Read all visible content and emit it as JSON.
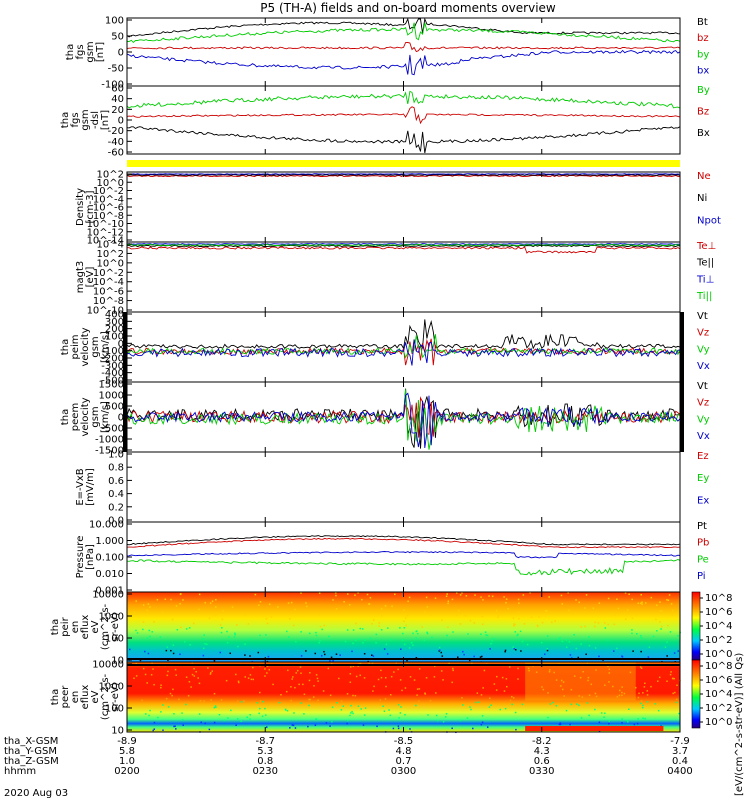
{
  "title": "P5 (TH-A) fields and on-board moments overview",
  "date_label": "2020 Aug 03",
  "time_axis": {
    "rows": [
      {
        "label": "tha_X-GSM",
        "values": [
          "-8.9",
          "-8.7",
          "-8.5",
          "-8.2",
          "-7.9"
        ]
      },
      {
        "label": "tha_Y-GSM",
        "values": [
          "5.8",
          "5.3",
          "4.8",
          "4.3",
          "3.7"
        ]
      },
      {
        "label": "tha_Z-GSM",
        "values": [
          "1.0",
          "0.8",
          "0.7",
          "0.6",
          "0.4"
        ]
      },
      {
        "label": "hhmm",
        "values": [
          "0200",
          "0230",
          "0300",
          "0330",
          "0400"
        ]
      }
    ]
  },
  "colorbar_label": "[eV/(cm^2-s-str-eV)] (All Qs)",
  "colorbar_ticks": [
    "10^8",
    "10^6",
    "10^4",
    "10^2",
    "10^0",
    "10^8",
    "10^6",
    "10^4",
    "10^2",
    "10^0"
  ],
  "chart_data": [
    {
      "id": "fgs_gsm",
      "type": "line",
      "ylabel": [
        "tha",
        "fgs",
        "gsm",
        "[nT]"
      ],
      "yticks": [
        "100",
        "50",
        "0",
        "-50",
        "-100"
      ],
      "ylim": [
        -100,
        100
      ],
      "series": [
        {
          "name": "Bt",
          "color": "#000000"
        },
        {
          "name": "bz",
          "color": "#cc0000"
        },
        {
          "name": "by",
          "color": "#00cc00"
        },
        {
          "name": "bx",
          "color": "#0000cc"
        }
      ]
    },
    {
      "id": "fgs_dsl",
      "type": "line",
      "ylabel": [
        "tha",
        "fgs",
        "gsm",
        "-dsl",
        "[nT]"
      ],
      "yticks": [
        "60",
        "40",
        "20",
        "0",
        "-20",
        "-40",
        "-60"
      ],
      "ylim": [
        -60,
        60
      ],
      "series": [
        {
          "name": "By",
          "color": "#00cc00"
        },
        {
          "name": "Bz",
          "color": "#cc0000"
        },
        {
          "name": "Bx",
          "color": "#000000"
        }
      ]
    },
    {
      "id": "density",
      "type": "line",
      "ylabel": [
        "Density",
        "[cm-3]"
      ],
      "yticks": [
        "10^2",
        "10^0",
        "10^-2",
        "10^-4",
        "10^-6",
        "10^-8",
        "10^-10",
        "10^-12",
        "10^-14"
      ],
      "scale": "log",
      "series": [
        {
          "name": "Ne",
          "color": "#cc0000"
        },
        {
          "name": "Ni",
          "color": "#000000"
        },
        {
          "name": "Npot",
          "color": "#0000cc"
        }
      ]
    },
    {
      "id": "temperature",
      "type": "line",
      "ylabel": [
        "magt3",
        "[eV]"
      ],
      "yticks": [
        "10^4",
        "10^2",
        "10^0",
        "10^-2",
        "10^-4",
        "10^-6",
        "10^-8",
        "10^-10"
      ],
      "scale": "log",
      "series": [
        {
          "name": "Te⊥",
          "color": "#cc0000"
        },
        {
          "name": "Te||",
          "color": "#000000"
        },
        {
          "name": "Ti⊥",
          "color": "#0000cc"
        },
        {
          "name": "Ti||",
          "color": "#00cc00"
        }
      ]
    },
    {
      "id": "peim_velocity",
      "type": "line",
      "ylabel": [
        "tha",
        "peim",
        "velocity",
        "gsm",
        "[km/s]"
      ],
      "yticks": [
        "400",
        "300",
        "200",
        "100",
        "0",
        "-100",
        "-200",
        "-300",
        "-400",
        "-500"
      ],
      "ylim": [
        -500,
        400
      ],
      "series": [
        {
          "name": "Vt",
          "color": "#000000"
        },
        {
          "name": "Vz",
          "color": "#cc0000"
        },
        {
          "name": "Vy",
          "color": "#00cc00"
        },
        {
          "name": "Vx",
          "color": "#0000cc"
        }
      ]
    },
    {
      "id": "peem_velocity",
      "type": "line",
      "ylabel": [
        "tha",
        "peem",
        "velocity",
        "gsm",
        "[km/s]"
      ],
      "yticks": [
        "1500",
        "1000",
        "500",
        "0",
        "-500",
        "-1000",
        "-1500"
      ],
      "ylim": [
        -1500,
        1500
      ],
      "series": [
        {
          "name": "Vt",
          "color": "#000000"
        },
        {
          "name": "Vz",
          "color": "#cc0000"
        },
        {
          "name": "Vy",
          "color": "#00cc00"
        },
        {
          "name": "Vx",
          "color": "#0000cc"
        }
      ]
    },
    {
      "id": "efield",
      "type": "line",
      "ylabel": [
        "E=-VxB",
        "[mV/m]"
      ],
      "yticks": [
        "1.0",
        "0.8",
        "0.6",
        "0.4",
        "0.2",
        "0.0"
      ],
      "ylim": [
        0,
        1
      ],
      "series": [
        {
          "name": "Ez",
          "color": "#cc0000"
        },
        {
          "name": "Ey",
          "color": "#00cc00"
        },
        {
          "name": "Ex",
          "color": "#0000cc"
        }
      ]
    },
    {
      "id": "pressure",
      "type": "line",
      "ylabel": [
        "Pressure",
        "[nPa]"
      ],
      "yticks": [
        "10.000",
        "1.000",
        "0.100",
        "0.010",
        "0.001"
      ],
      "scale": "log",
      "series": [
        {
          "name": "Pt",
          "color": "#000000"
        },
        {
          "name": "Pb",
          "color": "#cc0000"
        },
        {
          "name": "Pe",
          "color": "#00cc00"
        },
        {
          "name": "Pi",
          "color": "#0000cc"
        }
      ]
    },
    {
      "id": "peir_spec",
      "type": "heatmap",
      "ylabel": [
        "tha",
        "peir",
        "en",
        "eflux",
        "eV",
        "(cm^2-s-",
        "sr-eV)"
      ],
      "yticks": [
        "10000",
        "1000",
        "100",
        "10"
      ],
      "scale": "log"
    },
    {
      "id": "peer_spec",
      "type": "heatmap",
      "ylabel": [
        "tha",
        "peer",
        "en",
        "eflux",
        "eV",
        "(cm^2-s-",
        "sr-eV)"
      ],
      "yticks": [
        "10000",
        "1000",
        "100",
        "10"
      ],
      "scale": "log"
    }
  ]
}
